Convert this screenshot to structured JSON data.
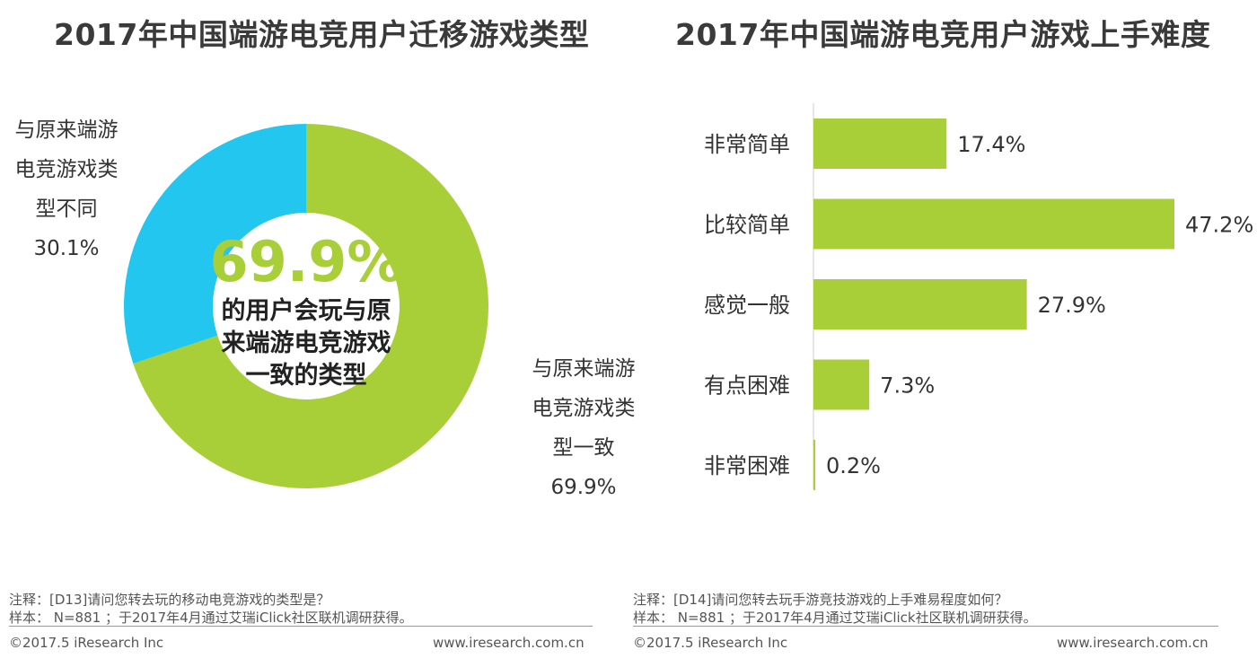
{
  "colors": {
    "green": "#a8cf38",
    "blue": "#22c6ef",
    "text": "#333333",
    "bigtext": "#a8cf38"
  },
  "chart_data": [
    {
      "type": "pie",
      "title": "2017年中国端游电竞用户迁移游戏类型",
      "variant": "donut",
      "slices": [
        {
          "label_lines": [
            "与原来端游",
            "电竞游戏类",
            "型一致"
          ],
          "value": 69.9,
          "value_label": "69.9%",
          "color": "#a8cf38"
        },
        {
          "label_lines": [
            "与原来端游",
            "电竞游戏类",
            "型不同"
          ],
          "value": 30.1,
          "value_label": "30.1%",
          "color": "#22c6ef"
        }
      ],
      "center": {
        "big": "69.9%",
        "lines": [
          "的用户会玩与原",
          "来端游电竞游戏",
          "一致的类型"
        ]
      }
    },
    {
      "type": "bar",
      "orientation": "horizontal",
      "title": "2017年中国端游电竞用户游戏上手难度",
      "categories": [
        "非常简单",
        "比较简单",
        "感觉一般",
        "有点困难",
        "非常困难"
      ],
      "values": [
        17.4,
        47.2,
        27.9,
        7.3,
        0.2
      ],
      "value_labels": [
        "17.4%",
        "47.2%",
        "27.9%",
        "7.3%",
        "0.2%"
      ],
      "xlim": [
        0,
        47.2
      ],
      "color": "#a8cf38"
    }
  ],
  "footer": {
    "left": {
      "note": "注释：[D13]请问您转去玩的移动电竞游戏的类型是？",
      "sample": "样本： N=881 ；于2017年4月通过艾瑞iClick社区联机调研获得。",
      "copyright": "©2017.5 iResearch Inc",
      "url": "www.iresearch.com.cn"
    },
    "right": {
      "note": "注释：[D14]请问您转去玩手游竞技游戏的上手难易程度如何？",
      "sample": "样本： N=881 ；于2017年4月通过艾瑞iClick社区联机调研获得。",
      "copyright": "©2017.5 iResearch Inc",
      "url": "www.iresearch.com.cn"
    }
  }
}
